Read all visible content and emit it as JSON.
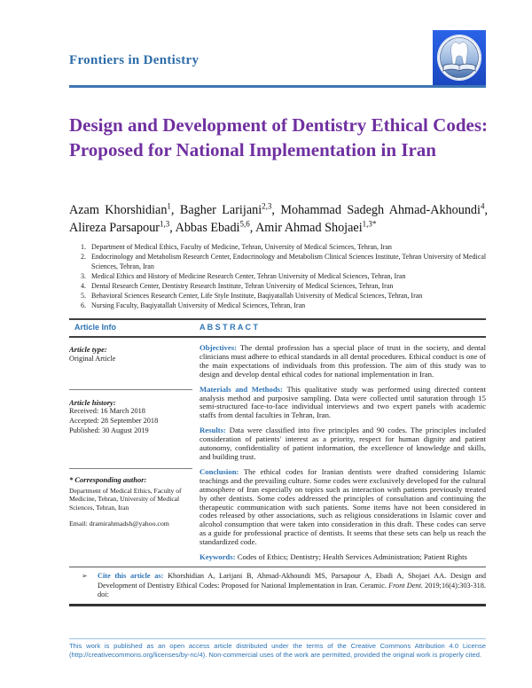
{
  "journal": {
    "name": "Frontiers in Dentistry"
  },
  "title": "Design and Development of Dentistry Ethical Codes: Proposed for National Implementation in Iran",
  "authors": [
    {
      "name": "Azam Khorshidian",
      "sup": "1"
    },
    {
      "name": "Bagher Larijani",
      "sup": "2,3"
    },
    {
      "name": "Mohammad Sadegh Ahmad-Akhoundi",
      "sup": "4"
    },
    {
      "name": "Alireza Parsapour",
      "sup": "1,3"
    },
    {
      "name": "Abbas Ebadi",
      "sup": "5,6"
    },
    {
      "name": "Amir Ahmad Shojaei",
      "sup": "1,3*"
    }
  ],
  "affiliations": [
    "Department of Medical Ethics, Faculty of Medicine, Tehran, University of Medical Sciences, Tehran, Iran",
    "Endocrinology and Metabolism Research Center, Endocrinology and Metabolism Clinical Sciences Institute, Tehran University of Medical Sciences, Tehran, Iran",
    "Medical Ethics and History of Medicine Research Center, Tehran University of Medical Sciences, Tehran, Iran",
    "Dental Research Center, Dentistry Research Institute, Tehran University of Medical Sciences, Tehran, Iran",
    "Behavioral Sciences Research Center, Life Style Institute, Baqiyatallah University of Medical Sciences, Tehran, Iran",
    "Nursing Faculty, Baqiyatallah University of Medical Sciences, Tehran, Iran"
  ],
  "info_header": {
    "left": "Article Info",
    "right": "A B S T R A C T"
  },
  "article_info": {
    "type_label": "Article type:",
    "type_value": "Original Article",
    "history_label": "Article history:",
    "received": "Received: 16 March 2018",
    "accepted": "Accepted: 28 September 2018",
    "published": "Published: 30 August 2019",
    "corresponding_label": "* Corresponding author:",
    "corresponding_address": "Department of Medical Ethics, Faculty of Medicine, Tehran, University of Medical Sciences, Tehran, Iran",
    "email": "Email: dramirahmadsh@yahoo.com"
  },
  "abstract": {
    "sections": [
      {
        "label": "Objectives:",
        "text": "The dental profession has a special place of trust in the society, and dental clinicians must adhere to ethical standards in all dental procedures. Ethical conduct is one of the main expectations of individuals from this profession. The aim of this study was to design and develop dental ethical codes for national implementation in Iran."
      },
      {
        "label": "Materials and Methods:",
        "text": "This qualitative study was performed using directed content analysis method and purposive sampling. Data were collected until saturation through 15 semi-structured face-to-face individual interviews and two expert panels with academic staffs from dental faculties in Tehran, Iran."
      },
      {
        "label": "Results:",
        "text": "Data were classified into five principles and 90 codes. The principles included consideration of patients' interest as a priority, respect for human dignity and patient autonomy, confidentiality of patient information, the excellence of knowledge and skills, and building trust."
      },
      {
        "label": "Conclusion:",
        "text": "The ethical codes for Iranian dentists were drafted considering Islamic teachings and the prevailing culture. Some codes were exclusively developed for the cultural atmosphere of Iran especially on topics such as interaction with patients previously treated by other dentists. Some codes addressed the principles of consultation and continuing the therapeutic communication with such patients. Some items have not been considered in codes released by other associations, such as religious considerations in Islamic cover and alcohol consumption that were taken into consideration in this draft. These codes can serve as a guide for professional practice of dentists. It seems that these sets can help us reach the standardized code."
      },
      {
        "label": "Keywords:",
        "text": "Codes of Ethics; Dentistry; Health Services Administration; Patient Rights"
      }
    ]
  },
  "cite": {
    "bullet": "➢",
    "label": "Cite this article as:",
    "text_before_journal": "Khorshidian A, Larijani B, Ahmad-Akhoundi MS, Parsapour A, Ebadi A, Shojaei AA. Design and Development of Dentistry Ethical Codes: Proposed for National Implementation in Iran. Ceramic. ",
    "journal": "Front Dent.",
    "text_after_journal": " 2019;16(4):303-318. doi:"
  },
  "footer": {
    "text": "This work is published as an open access article distributed under the terms of the Creative Commons Attribution 4.0 License (http://creativecommons.org/licenses/by-nc/4). Non-commercial uses of the work are permitted, provided the original work is properly cited."
  },
  "colors": {
    "accent_blue": "#2e74b5",
    "title_purple": "#7030a0",
    "logo_blue": "#1e4fc4"
  }
}
